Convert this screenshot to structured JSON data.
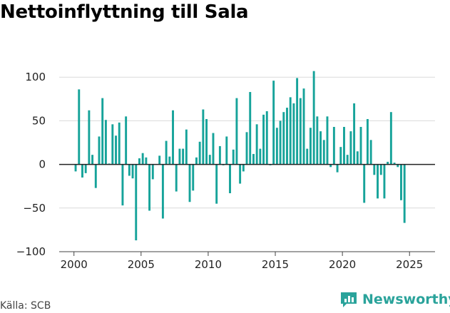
{
  "title": "Nettoinflyttning till Sala",
  "source": "Källa: SCB",
  "brand": {
    "name": "Newsworthy",
    "icon": "newsworthy-logo-icon"
  },
  "colors": {
    "bar": "#16a39a",
    "grid": "#d9d9d9",
    "zero_line": "#222222",
    "brand": "#2aa39b"
  },
  "chart_data": {
    "type": "bar",
    "title": "Nettoinflyttning till Sala",
    "xlabel": "",
    "ylabel": "",
    "xlim": [
      1998.9,
      2026.9
    ],
    "ylim": [
      -100,
      110
    ],
    "grid": true,
    "legend": "none",
    "x_ticks": [
      2000,
      2005,
      2010,
      2015,
      2020,
      2025
    ],
    "x_tick_labels": [
      "2000",
      "2005",
      "2010",
      "2015",
      "2020",
      "2025"
    ],
    "y_ticks": [
      100,
      50,
      0,
      -50,
      -100
    ],
    "y_tick_labels": [
      "100",
      "50",
      "0",
      "−50",
      "−100"
    ],
    "series": [
      {
        "frequency": "quarterly",
        "start": "2000 Q1",
        "values": [
          -8,
          86,
          -15,
          -10,
          62,
          11,
          -27,
          32,
          76,
          51,
          1,
          46,
          33,
          48,
          -47,
          55,
          -13,
          -16,
          -87,
          7,
          13,
          8,
          -53,
          -17,
          0,
          10,
          -62,
          27,
          9,
          62,
          -31,
          18,
          18,
          40,
          -43,
          -30,
          8,
          26,
          63,
          52,
          11,
          36,
          -45,
          21,
          -1,
          32,
          -33,
          17,
          76,
          -22,
          -8,
          37,
          83,
          12,
          46,
          18,
          57,
          61,
          -1,
          96,
          42,
          50,
          60,
          65,
          77,
          70,
          99,
          76,
          87,
          18,
          42,
          107,
          55,
          38,
          28,
          55,
          -3,
          43,
          -9,
          20,
          43,
          11,
          38,
          70,
          15,
          43,
          -44,
          52,
          28,
          -12,
          -39,
          -12,
          -39,
          3,
          60,
          2,
          -3,
          -41,
          -67
        ]
      }
    ]
  }
}
